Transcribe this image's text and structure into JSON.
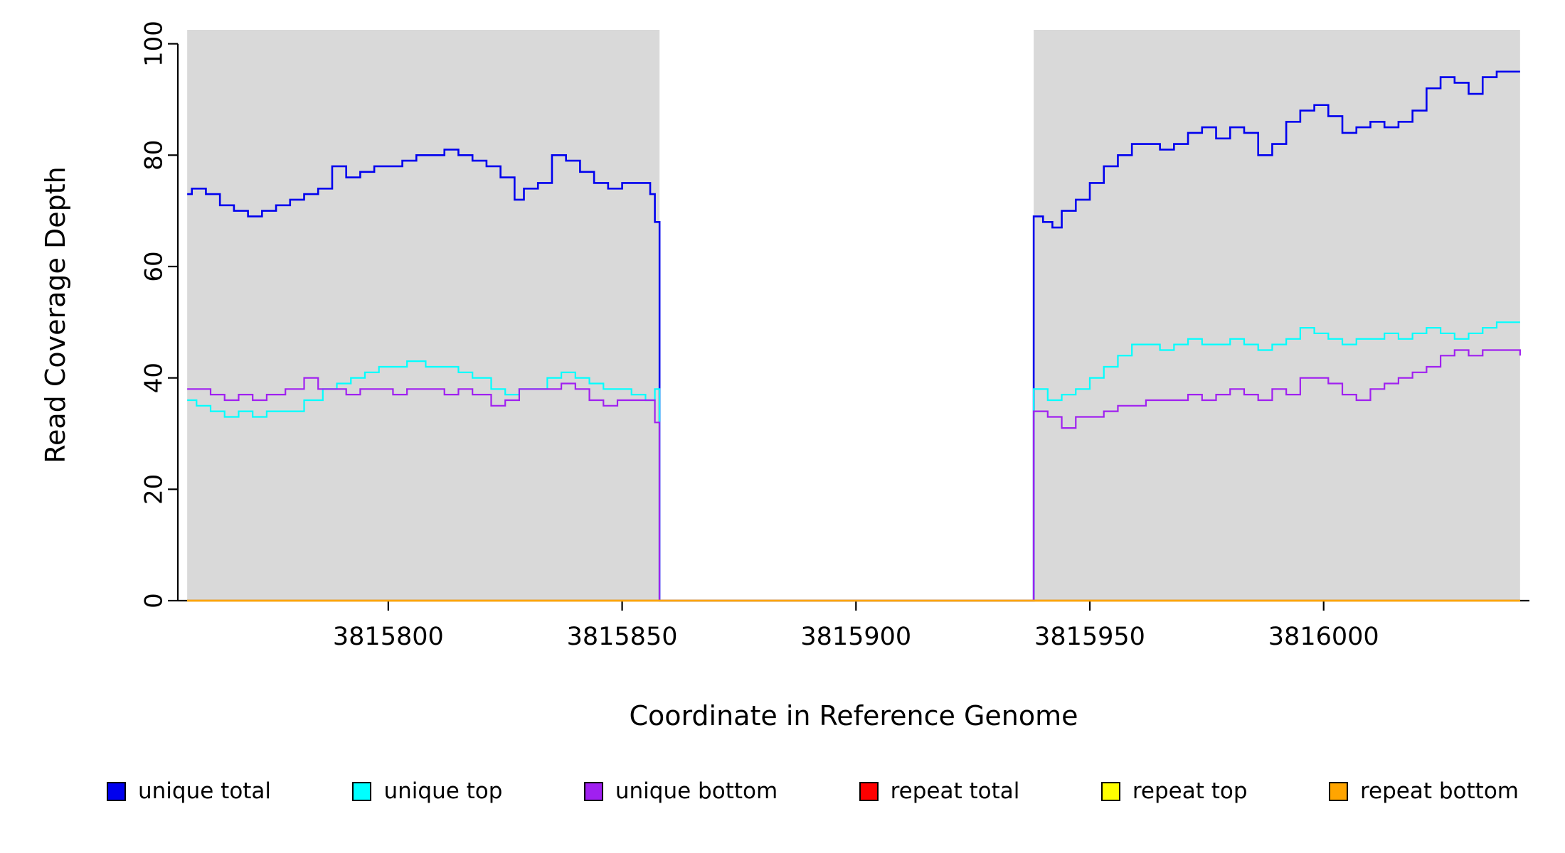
{
  "figure": {
    "background": "#FFFFFF",
    "region_fill": "#D9D9D9"
  },
  "chart_data": {
    "type": "line",
    "subtype": "step-coverage",
    "title": "",
    "xlabel": "Coordinate in Reference Genome",
    "ylabel": "Read Coverage Depth",
    "xlim": [
      3815755,
      3816044
    ],
    "ylim": [
      0,
      102.5
    ],
    "x_ticks": [
      3815800,
      3815850,
      3815900,
      3815950,
      3816000
    ],
    "y_ticks": [
      0,
      20,
      40,
      60,
      80,
      100
    ],
    "grid": false,
    "legend_position": "bottom",
    "shaded_regions": [
      {
        "x0": 3815757,
        "x1": 3815858,
        "color": "#D9D9D9"
      },
      {
        "x0": 3815938,
        "x1": 3816042,
        "color": "#D9D9D9"
      }
    ],
    "series": [
      {
        "name": "unique total",
        "color": "#0000EE",
        "width": 2.6,
        "points": [
          [
            3815757,
            73
          ],
          [
            3815758,
            74
          ],
          [
            3815761,
            73
          ],
          [
            3815764,
            71
          ],
          [
            3815767,
            70
          ],
          [
            3815770,
            69
          ],
          [
            3815773,
            70
          ],
          [
            3815776,
            71
          ],
          [
            3815779,
            72
          ],
          [
            3815782,
            73
          ],
          [
            3815785,
            74
          ],
          [
            3815788,
            78
          ],
          [
            3815791,
            76
          ],
          [
            3815794,
            77
          ],
          [
            3815797,
            78
          ],
          [
            3815800,
            78
          ],
          [
            3815803,
            79
          ],
          [
            3815806,
            80
          ],
          [
            3815809,
            80
          ],
          [
            3815812,
            81
          ],
          [
            3815815,
            80
          ],
          [
            3815818,
            79
          ],
          [
            3815821,
            78
          ],
          [
            3815824,
            76
          ],
          [
            3815827,
            72
          ],
          [
            3815829,
            74
          ],
          [
            3815832,
            75
          ],
          [
            3815835,
            80
          ],
          [
            3815838,
            79
          ],
          [
            3815841,
            77
          ],
          [
            3815844,
            75
          ],
          [
            3815847,
            74
          ],
          [
            3815850,
            75
          ],
          [
            3815853,
            75
          ],
          [
            3815856,
            73
          ],
          [
            3815857,
            68
          ],
          [
            3815858,
            0
          ],
          [
            3815938,
            69
          ],
          [
            3815940,
            68
          ],
          [
            3815942,
            67
          ],
          [
            3815944,
            70
          ],
          [
            3815947,
            72
          ],
          [
            3815950,
            75
          ],
          [
            3815953,
            78
          ],
          [
            3815956,
            80
          ],
          [
            3815959,
            82
          ],
          [
            3815962,
            82
          ],
          [
            3815965,
            81
          ],
          [
            3815968,
            82
          ],
          [
            3815971,
            84
          ],
          [
            3815974,
            85
          ],
          [
            3815977,
            83
          ],
          [
            3815980,
            85
          ],
          [
            3815983,
            84
          ],
          [
            3815986,
            80
          ],
          [
            3815989,
            82
          ],
          [
            3815992,
            86
          ],
          [
            3815995,
            88
          ],
          [
            3815998,
            89
          ],
          [
            3816001,
            87
          ],
          [
            3816004,
            84
          ],
          [
            3816007,
            85
          ],
          [
            3816010,
            86
          ],
          [
            3816013,
            85
          ],
          [
            3816016,
            86
          ],
          [
            3816019,
            88
          ],
          [
            3816022,
            92
          ],
          [
            3816025,
            94
          ],
          [
            3816028,
            93
          ],
          [
            3816031,
            91
          ],
          [
            3816034,
            94
          ],
          [
            3816037,
            95
          ],
          [
            3816042,
            95
          ]
        ]
      },
      {
        "name": "unique top",
        "color": "#00FFFF",
        "width": 2.2,
        "points": [
          [
            3815757,
            36
          ],
          [
            3815759,
            35
          ],
          [
            3815762,
            34
          ],
          [
            3815765,
            33
          ],
          [
            3815768,
            34
          ],
          [
            3815771,
            33
          ],
          [
            3815774,
            34
          ],
          [
            3815778,
            34
          ],
          [
            3815782,
            36
          ],
          [
            3815786,
            38
          ],
          [
            3815789,
            39
          ],
          [
            3815792,
            40
          ],
          [
            3815795,
            41
          ],
          [
            3815798,
            42
          ],
          [
            3815801,
            42
          ],
          [
            3815804,
            43
          ],
          [
            3815808,
            42
          ],
          [
            3815812,
            42
          ],
          [
            3815815,
            41
          ],
          [
            3815818,
            40
          ],
          [
            3815822,
            38
          ],
          [
            3815825,
            37
          ],
          [
            3815828,
            38
          ],
          [
            3815831,
            38
          ],
          [
            3815834,
            40
          ],
          [
            3815837,
            41
          ],
          [
            3815840,
            40
          ],
          [
            3815843,
            39
          ],
          [
            3815846,
            38
          ],
          [
            3815849,
            38
          ],
          [
            3815852,
            37
          ],
          [
            3815855,
            36
          ],
          [
            3815857,
            38
          ],
          [
            3815858,
            0
          ],
          [
            3815938,
            38
          ],
          [
            3815941,
            36
          ],
          [
            3815944,
            37
          ],
          [
            3815947,
            38
          ],
          [
            3815950,
            40
          ],
          [
            3815953,
            42
          ],
          [
            3815956,
            44
          ],
          [
            3815959,
            46
          ],
          [
            3815962,
            46
          ],
          [
            3815965,
            45
          ],
          [
            3815968,
            46
          ],
          [
            3815971,
            47
          ],
          [
            3815974,
            46
          ],
          [
            3815977,
            46
          ],
          [
            3815980,
            47
          ],
          [
            3815983,
            46
          ],
          [
            3815986,
            45
          ],
          [
            3815989,
            46
          ],
          [
            3815992,
            47
          ],
          [
            3815995,
            49
          ],
          [
            3815998,
            48
          ],
          [
            3816001,
            47
          ],
          [
            3816004,
            46
          ],
          [
            3816007,
            47
          ],
          [
            3816010,
            47
          ],
          [
            3816013,
            48
          ],
          [
            3816016,
            47
          ],
          [
            3816019,
            48
          ],
          [
            3816022,
            49
          ],
          [
            3816025,
            48
          ],
          [
            3816028,
            47
          ],
          [
            3816031,
            48
          ],
          [
            3816034,
            49
          ],
          [
            3816037,
            50
          ],
          [
            3816042,
            50
          ]
        ]
      },
      {
        "name": "unique bottom",
        "color": "#A020F0",
        "width": 2.2,
        "points": [
          [
            3815757,
            38
          ],
          [
            3815759,
            38
          ],
          [
            3815762,
            37
          ],
          [
            3815765,
            36
          ],
          [
            3815768,
            37
          ],
          [
            3815771,
            36
          ],
          [
            3815774,
            37
          ],
          [
            3815778,
            38
          ],
          [
            3815782,
            40
          ],
          [
            3815785,
            38
          ],
          [
            3815788,
            38
          ],
          [
            3815791,
            37
          ],
          [
            3815794,
            38
          ],
          [
            3815798,
            38
          ],
          [
            3815801,
            37
          ],
          [
            3815804,
            38
          ],
          [
            3815808,
            38
          ],
          [
            3815812,
            37
          ],
          [
            3815815,
            38
          ],
          [
            3815818,
            37
          ],
          [
            3815822,
            35
          ],
          [
            3815825,
            36
          ],
          [
            3815828,
            38
          ],
          [
            3815831,
            38
          ],
          [
            3815834,
            38
          ],
          [
            3815837,
            39
          ],
          [
            3815840,
            38
          ],
          [
            3815843,
            36
          ],
          [
            3815846,
            35
          ],
          [
            3815849,
            36
          ],
          [
            3815852,
            36
          ],
          [
            3815855,
            36
          ],
          [
            3815857,
            32
          ],
          [
            3815858,
            0
          ],
          [
            3815938,
            34
          ],
          [
            3815941,
            33
          ],
          [
            3815944,
            31
          ],
          [
            3815947,
            33
          ],
          [
            3815950,
            33
          ],
          [
            3815953,
            34
          ],
          [
            3815956,
            35
          ],
          [
            3815959,
            35
          ],
          [
            3815962,
            36
          ],
          [
            3815965,
            36
          ],
          [
            3815968,
            36
          ],
          [
            3815971,
            37
          ],
          [
            3815974,
            36
          ],
          [
            3815977,
            37
          ],
          [
            3815980,
            38
          ],
          [
            3815983,
            37
          ],
          [
            3815986,
            36
          ],
          [
            3815989,
            38
          ],
          [
            3815992,
            37
          ],
          [
            3815995,
            40
          ],
          [
            3815998,
            40
          ],
          [
            3816001,
            39
          ],
          [
            3816004,
            37
          ],
          [
            3816007,
            36
          ],
          [
            3816010,
            38
          ],
          [
            3816013,
            39
          ],
          [
            3816016,
            40
          ],
          [
            3816019,
            41
          ],
          [
            3816022,
            42
          ],
          [
            3816025,
            44
          ],
          [
            3816028,
            45
          ],
          [
            3816031,
            44
          ],
          [
            3816034,
            45
          ],
          [
            3816037,
            45
          ],
          [
            3816042,
            44
          ]
        ]
      },
      {
        "name": "repeat total",
        "color": "#FF0000",
        "width": 2.2,
        "points": [
          [
            3815757,
            0
          ],
          [
            3816042,
            0
          ]
        ]
      },
      {
        "name": "repeat top",
        "color": "#FFFF00",
        "width": 2.2,
        "points": [
          [
            3815757,
            0
          ],
          [
            3816042,
            0
          ]
        ]
      },
      {
        "name": "repeat bottom",
        "color": "#FFA500",
        "width": 2.4,
        "points": [
          [
            3815757,
            0
          ],
          [
            3816042,
            0
          ]
        ]
      }
    ],
    "legend": [
      {
        "label": "unique total",
        "color": "#0000EE"
      },
      {
        "label": "unique top",
        "color": "#00FFFF"
      },
      {
        "label": "unique bottom",
        "color": "#A020F0"
      },
      {
        "label": "repeat total",
        "color": "#FF0000"
      },
      {
        "label": "repeat top",
        "color": "#FFFF00"
      },
      {
        "label": "repeat bottom",
        "color": "#FFA500"
      }
    ]
  }
}
